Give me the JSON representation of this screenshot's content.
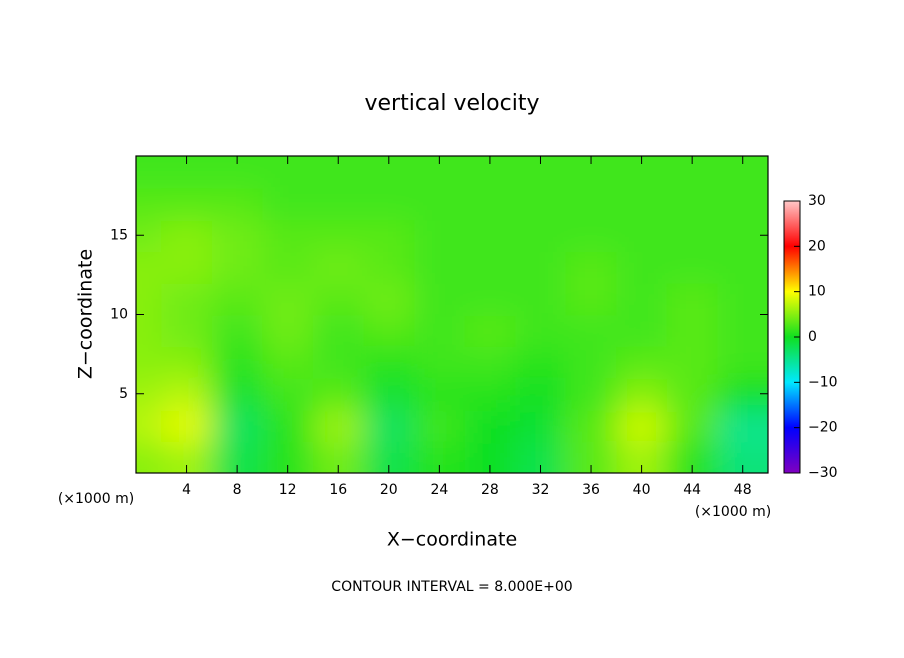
{
  "chart_data": {
    "type": "heatmap",
    "title": "vertical velocity",
    "xlabel": "X−coordinate",
    "ylabel": "Z−coordinate",
    "x_unit": "(×1000 m)",
    "footer": "CONTOUR INTERVAL = 8.000E+00",
    "x": [
      0,
      4,
      8,
      12,
      16,
      20,
      24,
      28,
      32,
      36,
      40,
      44,
      48
    ],
    "y": [
      1,
      3,
      5,
      7,
      9,
      11,
      13,
      15,
      17,
      19
    ],
    "values": [
      [
        5,
        6,
        -2,
        1,
        4,
        -2,
        1,
        0,
        -2,
        3,
        6,
        1,
        -4
      ],
      [
        7,
        9,
        -3,
        1,
        6,
        -3,
        2,
        0,
        -1,
        3,
        8,
        3,
        -5
      ],
      [
        6,
        7,
        -1,
        2,
        3,
        -1,
        1,
        1,
        0,
        2,
        5,
        3,
        0
      ],
      [
        5,
        5,
        1,
        3,
        2,
        1,
        2,
        2,
        1,
        2,
        3,
        3,
        2
      ],
      [
        5,
        4,
        2,
        4,
        2,
        3,
        2,
        3,
        2,
        2,
        2,
        3,
        2
      ],
      [
        5,
        4,
        3,
        4,
        3,
        4,
        2,
        2,
        2,
        3,
        2,
        3,
        2
      ],
      [
        5,
        5,
        4,
        3,
        4,
        3,
        2,
        2,
        2,
        3,
        2,
        2,
        2
      ],
      [
        4,
        5,
        4,
        3,
        3,
        3,
        2,
        2,
        2,
        2,
        2,
        2,
        2
      ],
      [
        3,
        3,
        3,
        2,
        2,
        2,
        2,
        2,
        2,
        2,
        2,
        2,
        2
      ],
      [
        2,
        2,
        2,
        2,
        2,
        2,
        2,
        2,
        2,
        2,
        2,
        2,
        2
      ]
    ],
    "xlim": [
      0,
      50
    ],
    "ylim": [
      0,
      20
    ],
    "xticks": [
      4,
      8,
      12,
      16,
      20,
      24,
      28,
      32,
      36,
      40,
      44,
      48
    ],
    "yticks": [
      5,
      10,
      15
    ],
    "clim": [
      -30,
      30
    ],
    "colormap": [
      "#8000c0",
      "#0000ff",
      "#00e8ff",
      "#10e020",
      "#ffff00",
      "#ff0000",
      "#ffc8c8"
    ],
    "colorbar_ticks": [
      {
        "value": -30,
        "label": "−30"
      },
      {
        "value": -20,
        "label": "−20"
      },
      {
        "value": -10,
        "label": "−10"
      },
      0,
      10,
      20,
      30
    ]
  }
}
